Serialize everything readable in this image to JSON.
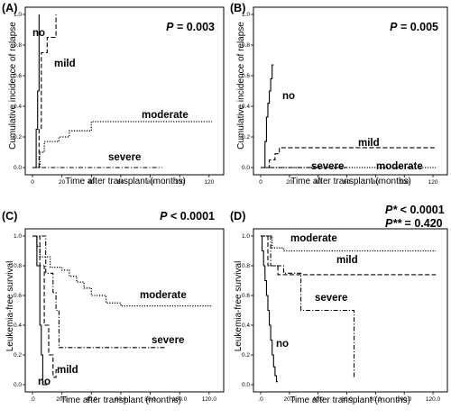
{
  "chart_data": [
    {
      "type": "line",
      "step": true,
      "panel": "(A)",
      "pvalue_label": "P",
      "pvalue_text": " = 0.003",
      "xlabel": "Time after transplant (months)",
      "ylabel": "Cumulative incidence of relapse",
      "xlim": [
        0,
        125
      ],
      "ylim": [
        0,
        1.0
      ],
      "xticks": [
        0,
        20,
        40,
        60,
        80,
        100,
        120
      ],
      "xtick_labels": [
        "0",
        "20",
        "40",
        "60",
        "80",
        "100",
        "120"
      ],
      "yticks": [
        0,
        0.2,
        0.4,
        0.6,
        0.8,
        1.0
      ],
      "ytick_labels": [
        "0.0",
        "0.2",
        "0.4",
        "0.6",
        "0.8",
        "1.0"
      ],
      "series": [
        {
          "name": "no",
          "dash": "solid",
          "x": [
            0,
            2.5,
            2.5,
            3.5,
            3.5,
            4.5,
            4.5
          ],
          "y": [
            0,
            0,
            0.25,
            0.25,
            0.5,
            0.5,
            1.0
          ]
        },
        {
          "name": "mild",
          "dash": "long",
          "x": [
            0,
            4.5,
            4.5,
            6,
            6,
            10,
            10,
            16,
            16
          ],
          "y": [
            0,
            0,
            0.25,
            0.25,
            0.75,
            0.75,
            0.85,
            0.85,
            1.0
          ]
        },
        {
          "name": "moderate",
          "dash": "dot",
          "x": [
            0,
            5,
            5,
            8,
            8,
            18,
            18,
            25,
            25,
            40,
            40,
            122
          ],
          "y": [
            0,
            0,
            0.1,
            0.1,
            0.17,
            0.17,
            0.2,
            0.2,
            0.24,
            0.24,
            0.3,
            0.3
          ]
        },
        {
          "name": "severe",
          "dash": "dashdot",
          "x": [
            0,
            88
          ],
          "y": [
            0,
            0
          ]
        }
      ]
    },
    {
      "type": "line",
      "step": true,
      "panel": "(B)",
      "pvalue_label": "P",
      "pvalue_text": " = 0.005",
      "xlabel": "Time after transplant (months)",
      "ylabel": "Cumulative incidence of relapse",
      "xlim": [
        0,
        125
      ],
      "ylim": [
        0,
        1.0
      ],
      "xticks": [
        0,
        20,
        40,
        60,
        80,
        100,
        120
      ],
      "xtick_labels": [
        "0",
        "20",
        "40",
        "60",
        "80",
        "100",
        "120"
      ],
      "yticks": [
        0,
        0.2,
        0.4,
        0.6,
        0.8,
        1.0
      ],
      "ytick_labels": [
        "0.0",
        "0.2",
        "0.4",
        "0.6",
        "0.8",
        "1.0"
      ],
      "series": [
        {
          "name": "no",
          "dash": "solid",
          "x": [
            0,
            3,
            3,
            4,
            4,
            5,
            5,
            6,
            6,
            7,
            7,
            8,
            8,
            9
          ],
          "y": [
            0,
            0,
            0.17,
            0.17,
            0.33,
            0.33,
            0.42,
            0.42,
            0.5,
            0.5,
            0.58,
            0.58,
            0.67,
            0.67
          ]
        },
        {
          "name": "mild",
          "dash": "long",
          "x": [
            0,
            6,
            6,
            10,
            10,
            13,
            13,
            122
          ],
          "y": [
            0,
            0,
            0.05,
            0.05,
            0.09,
            0.09,
            0.13,
            0.13
          ]
        },
        {
          "name": "severe",
          "dash": "dashdot",
          "x": [
            0,
            60
          ],
          "y": [
            0,
            0
          ]
        },
        {
          "name": "moderate",
          "dash": "dot",
          "x": [
            0,
            122
          ],
          "y": [
            0,
            0
          ]
        }
      ]
    },
    {
      "type": "line",
      "step": true,
      "panel": "(C)",
      "pvalue_label": "P",
      "pvalue_text": " < 0.0001",
      "xlabel": "Time after transplant (months)",
      "ylabel": "Leukemia-free survival",
      "xlim": [
        0,
        125
      ],
      "ylim": [
        0,
        1.0
      ],
      "xticks": [
        0,
        20,
        40,
        60,
        80,
        100,
        120
      ],
      "xtick_labels": [
        ".0",
        "20.0",
        "40.0",
        "60.0",
        "80.0",
        "100.0",
        "120.0"
      ],
      "yticks": [
        0,
        0.2,
        0.4,
        0.6,
        0.8,
        1.0
      ],
      "ytick_labels": [
        "0.0",
        "0.2",
        "0.4",
        "0.6",
        "0.8",
        "1.0"
      ],
      "series": [
        {
          "name": "no",
          "dash": "solid",
          "x": [
            0,
            3,
            3,
            5,
            5,
            6,
            6,
            7,
            7,
            10
          ],
          "y": [
            1.0,
            1.0,
            0.8,
            0.8,
            0.4,
            0.4,
            0.2,
            0.2,
            0.0,
            0.0
          ]
        },
        {
          "name": "mild",
          "dash": "long",
          "x": [
            0,
            5,
            5,
            8,
            8,
            11,
            11,
            14,
            14,
            16,
            16,
            18
          ],
          "y": [
            1.0,
            1.0,
            0.8,
            0.8,
            0.4,
            0.4,
            0.2,
            0.2,
            0.05,
            0.05,
            0.1,
            0.1
          ]
        },
        {
          "name": "severe",
          "dash": "dashdot",
          "x": [
            0,
            9,
            9,
            14,
            14,
            16,
            16,
            18,
            18,
            90
          ],
          "y": [
            1.0,
            1.0,
            0.75,
            0.75,
            0.62,
            0.62,
            0.5,
            0.5,
            0.25,
            0.25
          ]
        },
        {
          "name": "moderate",
          "dash": "dot",
          "x": [
            0,
            3,
            3,
            5,
            5,
            12,
            12,
            20,
            20,
            25,
            25,
            30,
            30,
            35,
            35,
            40,
            40,
            50,
            50,
            60,
            60,
            122
          ],
          "y": [
            1.0,
            1.0,
            0.93,
            0.93,
            0.86,
            0.86,
            0.79,
            0.79,
            0.77,
            0.77,
            0.73,
            0.73,
            0.69,
            0.69,
            0.65,
            0.65,
            0.6,
            0.6,
            0.55,
            0.55,
            0.53,
            0.53
          ]
        }
      ]
    },
    {
      "type": "line",
      "step": true,
      "panel": "(D)",
      "pvalue_lines": [
        {
          "label": "P*",
          "text": " < 0.0001"
        },
        {
          "label": "P**",
          "text": " = 0.420"
        }
      ],
      "xlabel": "Time after transplant (months)",
      "ylabel": "Leukemia-free survival",
      "xlim": [
        0,
        125
      ],
      "ylim": [
        0,
        1.0
      ],
      "xticks": [
        0,
        20,
        40,
        60,
        80,
        100,
        120
      ],
      "xtick_labels": [
        ".0",
        "20.0",
        "40.0",
        "60.0",
        "80.0",
        "100.0",
        "120.0"
      ],
      "yticks": [
        0,
        0.2,
        0.4,
        0.6,
        0.8,
        1.0
      ],
      "ytick_labels": [
        "0.0",
        "0.2",
        "0.4",
        "0.6",
        "0.8",
        "1.0"
      ],
      "series": [
        {
          "name": "moderate",
          "dash": "dot",
          "x": [
            0,
            8,
            8,
            16,
            16,
            122
          ],
          "y": [
            1.0,
            1.0,
            0.92,
            0.92,
            0.9,
            0.9
          ]
        },
        {
          "name": "mild",
          "dash": "long",
          "x": [
            0,
            5,
            5,
            12,
            12,
            122
          ],
          "y": [
            1.0,
            1.0,
            0.8,
            0.8,
            0.74,
            0.74
          ]
        },
        {
          "name": "severe",
          "dash": "dashdot",
          "x": [
            0,
            7,
            7,
            16,
            16,
            28,
            28,
            65,
            65
          ],
          "y": [
            1.0,
            1.0,
            0.8,
            0.8,
            0.75,
            0.75,
            0.5,
            0.5,
            0.05
          ]
        },
        {
          "name": "no",
          "dash": "solid",
          "x": [
            0,
            1,
            1,
            2,
            2,
            3,
            3,
            4,
            4,
            5,
            5,
            6,
            6,
            7,
            7,
            8,
            8,
            9,
            9,
            10,
            10,
            11,
            11,
            12
          ],
          "y": [
            1.0,
            1.0,
            0.9,
            0.9,
            0.8,
            0.8,
            0.7,
            0.7,
            0.6,
            0.6,
            0.5,
            0.5,
            0.4,
            0.4,
            0.3,
            0.3,
            0.2,
            0.2,
            0.12,
            0.12,
            0.06,
            0.06,
            0.02,
            0.02
          ]
        }
      ]
    }
  ]
}
